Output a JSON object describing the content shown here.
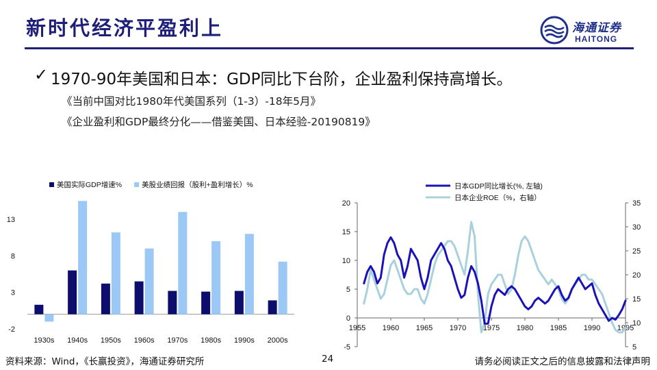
{
  "header": {
    "title": "新时代经济平盈利上",
    "logo_cn": "海通证券",
    "logo_en": "HAITONG"
  },
  "headline": "1970-90年美国和日本：GDP同比下台阶，企业盈利保持高增长。",
  "references": [
    "《当前中国对比1980年代美国系列（1-3）-18年5月》",
    "《企业盈利和GDP最终分化——借鉴美国、日本经验-20190819》"
  ],
  "footer": {
    "source": "资料来源：Wind，《长赢投资》，海通证券研究所",
    "page": "24",
    "disclaimer": "请务必阅读正文之后的信息披露和法律声明"
  },
  "colors": {
    "navy": "#0d0d6b",
    "light_blue": "#9cc8f5",
    "line_dark": "#1a12b8",
    "line_light": "#a9d1dd",
    "title": "#1f1f7a"
  },
  "chart_data": [
    {
      "type": "bar",
      "categories": [
        "1930s",
        "1940s",
        "1950s",
        "1960s",
        "1970s",
        "1980s",
        "1990s",
        "2000s"
      ],
      "series": [
        {
          "name": "美国实际GDP增速%",
          "values": [
            1.3,
            6.0,
            4.2,
            4.5,
            3.2,
            3.1,
            3.2,
            1.9
          ]
        },
        {
          "name": "美股业绩回报（股利+盈利增长）%",
          "values": [
            -1.0,
            15.5,
            11.2,
            9.0,
            14.0,
            10.0,
            11.0,
            7.2
          ]
        }
      ],
      "yticks": [
        -2,
        3,
        8,
        13
      ],
      "ylim": [
        -2,
        16
      ],
      "legend": "top"
    },
    {
      "type": "line",
      "x_ticks": [
        1955,
        1960,
        1965,
        1970,
        1975,
        1980,
        1985,
        1990,
        1995
      ],
      "xlim": [
        1955,
        1995
      ],
      "left_ticks": [
        -5,
        0,
        5,
        10,
        15,
        20
      ],
      "left_lim": [
        -5,
        20
      ],
      "right_ticks": [
        5,
        10,
        15,
        20,
        25,
        30,
        35
      ],
      "right_lim": [
        5,
        35
      ],
      "legend": "top-left",
      "series": [
        {
          "name": "日本GDP同比增长(%, 左轴)",
          "axis": "left",
          "x": [
            1956,
            1956.5,
            1957,
            1957.5,
            1958,
            1958.5,
            1959,
            1959.5,
            1960,
            1960.5,
            1961,
            1961.5,
            1962,
            1962.5,
            1963,
            1963.5,
            1964,
            1964.5,
            1965,
            1965.5,
            1966,
            1966.5,
            1967,
            1967.5,
            1968,
            1968.5,
            1969,
            1969.5,
            1970,
            1970.5,
            1971,
            1971.5,
            1972,
            1972.5,
            1973,
            1973.5,
            1974,
            1974.5,
            1975,
            1975.5,
            1976,
            1976.5,
            1977,
            1977.5,
            1978,
            1978.5,
            1979,
            1979.5,
            1980,
            1980.5,
            1981,
            1981.5,
            1982,
            1982.5,
            1983,
            1983.5,
            1984,
            1984.5,
            1985,
            1985.5,
            1986,
            1986.5,
            1987,
            1987.5,
            1988,
            1988.5,
            1989,
            1989.5,
            1990,
            1990.5,
            1991,
            1991.5,
            1992,
            1992.5,
            1993,
            1993.5,
            1994,
            1994.5,
            1995
          ],
          "values": [
            6,
            8,
            9,
            8,
            6,
            7,
            11,
            13,
            14,
            13,
            11,
            10,
            7,
            9,
            12,
            11,
            10,
            7,
            5,
            7,
            10,
            11,
            12,
            13,
            12,
            10,
            9,
            7,
            5,
            3.5,
            4,
            7,
            9,
            8,
            6,
            3,
            -1,
            -1,
            2,
            4,
            5,
            4.5,
            4,
            5,
            5.5,
            5,
            4,
            3,
            2,
            1.5,
            2,
            3,
            3.5,
            3,
            2.5,
            3,
            4,
            5,
            5.5,
            4,
            3,
            3.5,
            5,
            6,
            7,
            6,
            5,
            5.5,
            6,
            4,
            2.5,
            1.5,
            0.5,
            -0.5,
            0,
            -0.3,
            0.5,
            1.5,
            3
          ]
        },
        {
          "name": "日本企业ROE（%，右轴）",
          "axis": "right",
          "x": [
            1956,
            1956.5,
            1957,
            1957.5,
            1958,
            1958.5,
            1959,
            1959.5,
            1960,
            1960.5,
            1961,
            1961.5,
            1962,
            1962.5,
            1963,
            1963.5,
            1964,
            1964.5,
            1965,
            1965.5,
            1966,
            1966.5,
            1967,
            1967.5,
            1968,
            1968.5,
            1969,
            1969.5,
            1970,
            1970.5,
            1971,
            1971.5,
            1972,
            1972.5,
            1973,
            1973.5,
            1974,
            1974.5,
            1975,
            1975.5,
            1976,
            1976.5,
            1977,
            1977.5,
            1978,
            1978.5,
            1979,
            1979.5,
            1980,
            1980.5,
            1981,
            1981.5,
            1982,
            1982.5,
            1983,
            1983.5,
            1984,
            1984.5,
            1985,
            1985.5,
            1986,
            1986.5,
            1987,
            1987.5,
            1988,
            1988.5,
            1989,
            1989.5,
            1990,
            1990.5,
            1991,
            1991.5,
            1992,
            1992.5,
            1993,
            1993.5,
            1994,
            1994.5,
            1995
          ],
          "values": [
            14,
            17,
            21,
            19,
            17,
            15,
            16,
            19,
            22,
            23,
            21,
            19,
            17,
            16,
            16,
            17,
            17,
            15,
            14,
            16,
            19,
            22,
            24,
            25,
            26,
            27,
            27,
            26,
            24,
            22,
            20,
            25,
            31,
            28,
            16,
            8,
            10,
            16,
            18,
            19,
            20,
            20,
            18,
            16,
            17,
            20,
            24,
            27,
            28,
            27,
            25,
            23,
            21,
            20,
            19,
            18,
            19,
            18,
            17,
            15,
            14,
            15,
            17,
            18,
            19,
            20,
            20,
            19,
            19,
            18,
            17,
            16,
            14,
            12,
            10,
            8.5,
            8,
            8,
            9
          ]
        }
      ]
    }
  ]
}
